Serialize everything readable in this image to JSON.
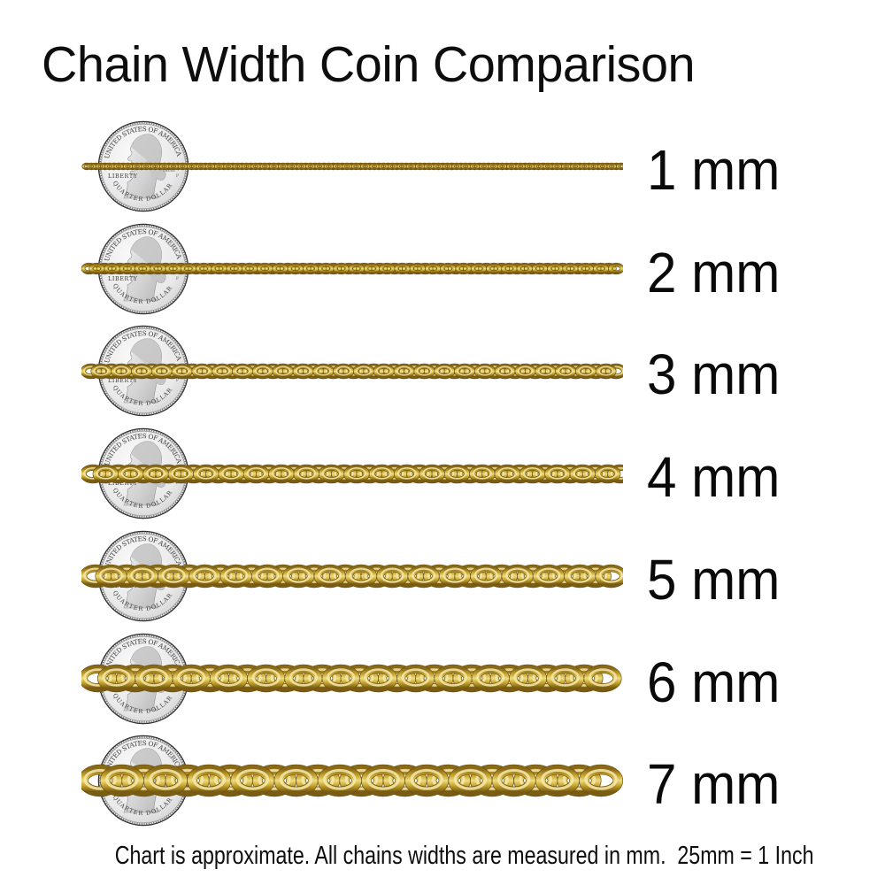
{
  "title": "Chain Width Coin Comparison",
  "footer": "Chart is approximate. All chains widths are measured in mm.  25mm = 1 Inch",
  "coin": {
    "top_text": "UNITED STATES OF AMERICA",
    "liberty_text": "LIBERTY",
    "motto_line1": "GOD WE",
    "motto_line2": "TRUST",
    "bottom_text": "QUARTER DOLLAR",
    "mint_mark": "P"
  },
  "rows": [
    {
      "label": "1 mm",
      "mm": 1
    },
    {
      "label": "2 mm",
      "mm": 2
    },
    {
      "label": "3 mm",
      "mm": 3
    },
    {
      "label": "4 mm",
      "mm": 4
    },
    {
      "label": "5 mm",
      "mm": 5
    },
    {
      "label": "6 mm",
      "mm": 6
    },
    {
      "label": "7 mm",
      "mm": 7
    }
  ],
  "colors": {
    "chain_gold_dark": "#6d5413",
    "chain_gold_mid": "#c9a62f",
    "chain_gold_light": "#eedc82",
    "chain_gold_highlight": "#f3e9ae",
    "coin_silver_light": "#fafafa",
    "coin_silver_dark": "#d2d2d2",
    "text_black": "#0a0a0a"
  }
}
